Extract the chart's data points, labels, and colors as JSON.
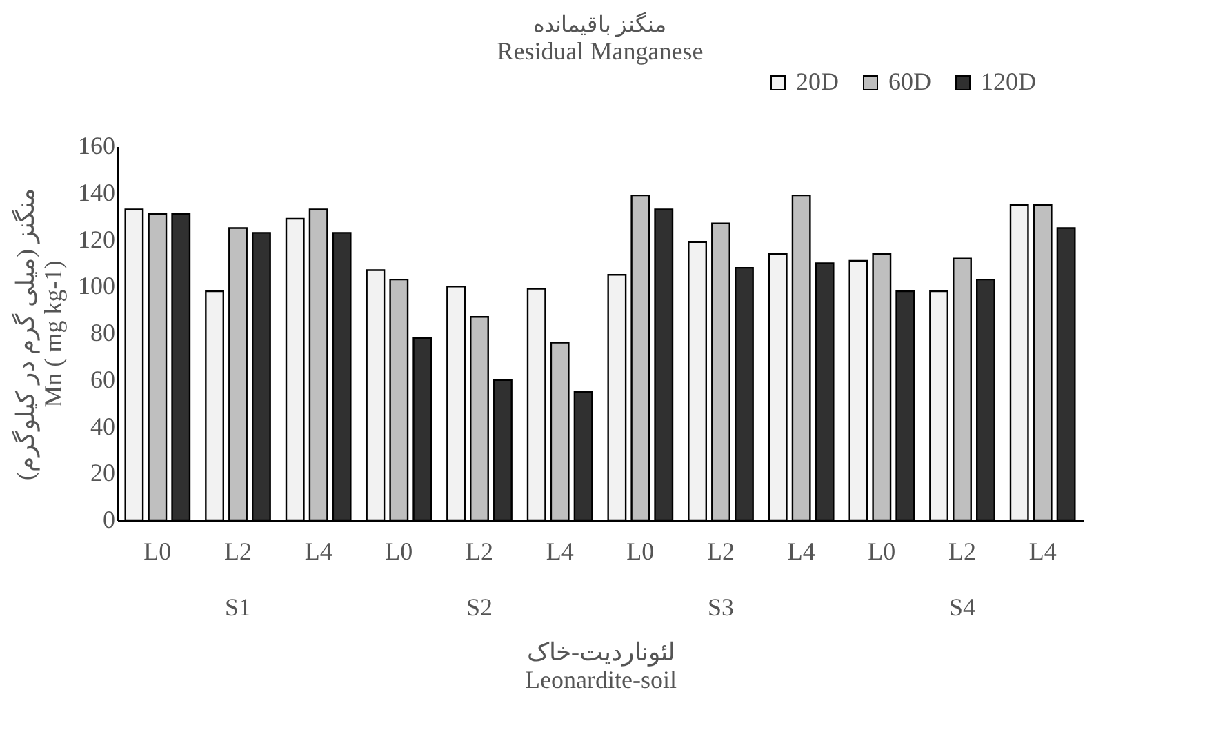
{
  "chart_data": {
    "type": "bar",
    "title": "منگنز باقیمانده",
    "subtitle": "Residual Manganese",
    "xlabel": "لئوناردیت-خاک\nLeonardite-soil",
    "ylabel": "منگنز (میلی گرم در کیلوگرم)\nMn ( mg kg-1)",
    "categories": [
      "L0",
      "L2",
      "L4",
      "L0",
      "L2",
      "L4",
      "L0",
      "L2",
      "L4",
      "L0",
      "L2",
      "L4"
    ],
    "annotations": [
      "S1",
      "S2",
      "S3",
      "S4"
    ],
    "series": [
      {
        "name": "20D",
        "color": "#f2f2f2",
        "values": [
          133,
          98,
          129,
          107,
          100,
          99,
          105,
          119,
          114,
          111,
          98,
          135
        ]
      },
      {
        "name": "60D",
        "color": "#bfbfbf",
        "values": [
          131,
          125,
          133,
          103,
          87,
          76,
          139,
          127,
          139,
          114,
          112,
          135
        ]
      },
      {
        "name": "120D",
        "color": "#303030",
        "values": [
          131,
          123,
          123,
          78,
          60,
          55,
          133,
          108,
          110,
          98,
          103,
          125
        ]
      }
    ],
    "ylim": [
      0,
      160
    ],
    "yticks": [
      0,
      20,
      40,
      60,
      80,
      100,
      120,
      140,
      160
    ],
    "grid": false,
    "legend": "top right"
  }
}
